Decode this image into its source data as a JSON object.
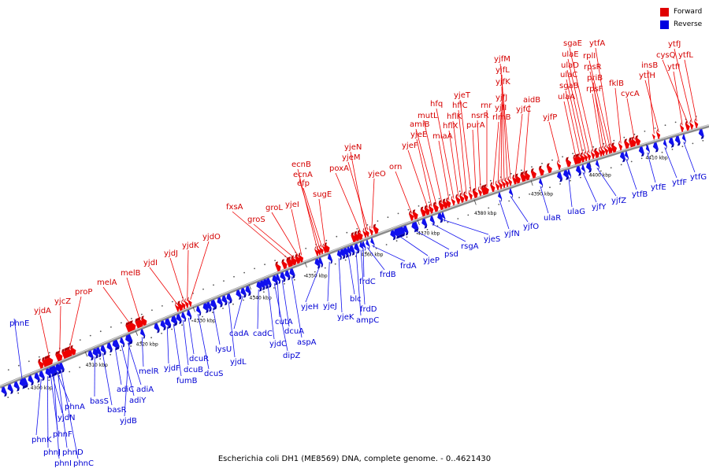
{
  "legend": {
    "forward_label": "Forward",
    "reverse_label": "Reverse",
    "forward_color": "#e00000",
    "reverse_color": "#0000e0"
  },
  "caption": "Escherichia coli DH1 (ME8569) DNA, complete genome. - 0..4621430",
  "ticks": [
    "4300 kbp",
    "4310 kbp",
    "4320 kbp",
    "4330 kbp",
    "4340 kbp",
    "4350 kbp",
    "4360 kbp",
    "4370 kbp",
    "4380 kbp",
    "4390 kbp",
    "4400 kbp",
    "4410 kbp"
  ],
  "forward_genes": [
    "yjdA",
    "yjcZ",
    "proP",
    "melA",
    "melB",
    "yjdI",
    "yjdJ",
    "yjdK",
    "yjdO",
    "fxsA",
    "groS",
    "groL",
    "yjeI",
    "ecnB",
    "ecnA",
    "efp",
    "sugE",
    "poxA",
    "yjeN",
    "yjeM",
    "yjeO",
    "orn",
    "yjeF",
    "yjeE",
    "amiB",
    "mutL",
    "miaA",
    "hfq",
    "hflX",
    "hflK",
    "hflC",
    "yjeT",
    "purA",
    "nsrR",
    "rnr",
    "rlmB",
    "yjfI",
    "yjfJ",
    "yjfK",
    "yjfL",
    "yjfM",
    "yjfC",
    "aidB",
    "yjfP",
    "ulaA",
    "sgaB",
    "ulaC",
    "ulaD",
    "ulaE",
    "sgaE",
    "rpsF",
    "priB",
    "rpsR",
    "rplI",
    "ytfA",
    "fklB",
    "cycA",
    "ytfH",
    "insB",
    "ytfI",
    "cysQ",
    "ytfJ",
    "ytfL"
  ],
  "reverse_genes": [
    "phnE",
    "phnK",
    "phnJ",
    "phnI",
    "phnC",
    "phnD",
    "phnF",
    "yjdN",
    "phnA",
    "basS",
    "basR",
    "adiC",
    "adiY",
    "adiA",
    "yjdB",
    "melR",
    "yjdF",
    "fumB",
    "dcuB",
    "dcuR",
    "dcuS",
    "lysU",
    "yjdL",
    "cadA",
    "cadC",
    "yjdC",
    "dipZ",
    "cutA",
    "dcuA",
    "aspA",
    "yjeH",
    "yjeJ",
    "yjeK",
    "blc",
    "ampC",
    "frdD",
    "frdC",
    "frdB",
    "frdA",
    "yjeP",
    "psd",
    "rsgA",
    "yjeS",
    "yjfN",
    "yjfO",
    "ulaR",
    "ulaG",
    "yjfY",
    "yjfZ",
    "ytfB",
    "ytfE",
    "ytfF",
    "ytfG"
  ]
}
